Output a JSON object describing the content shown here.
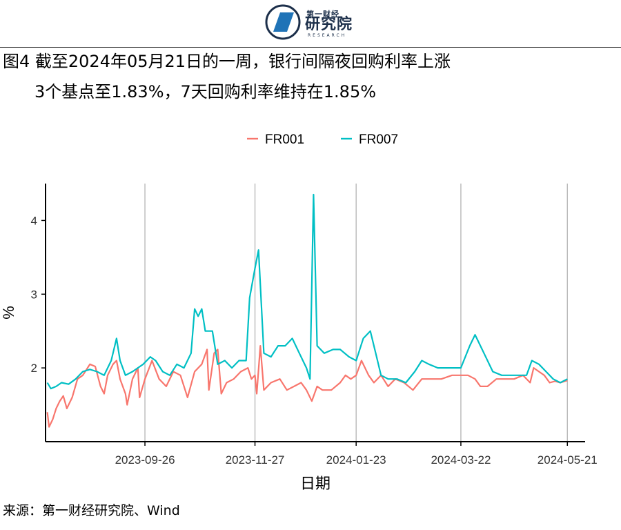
{
  "header": {
    "logo_small": "第一财经",
    "logo_big": "研究院",
    "logo_en": "RESEARCH"
  },
  "title": {
    "line1": "图4 截至2024年05月21日的一周，银行间隔夜回购利率上涨",
    "line2": "3个基点至1.83%，7天回购利率维持在1.85%"
  },
  "footer": {
    "source": "来源：第一财经研究院、Wind"
  },
  "colors": {
    "FR001": "#F8766D",
    "FR007": "#00BFC4"
  },
  "chart_data": {
    "type": "line",
    "xlabel": "日期",
    "ylabel": "%",
    "x_range": [
      "2023-08-01",
      "2024-05-31"
    ],
    "ylim": [
      1.0,
      4.5
    ],
    "x_ticks": [
      "2023-09-26",
      "2023-11-27",
      "2024-01-23",
      "2024-03-22",
      "2024-05-21"
    ],
    "y_ticks": [
      2,
      3,
      4
    ],
    "grid": "vertical-major",
    "legend": "top",
    "series": [
      {
        "name": "FR001",
        "color": "#F8766D",
        "points": [
          [
            "2023-08-02",
            1.4
          ],
          [
            "2023-08-03",
            1.2
          ],
          [
            "2023-08-05",
            1.3
          ],
          [
            "2023-08-07",
            1.45
          ],
          [
            "2023-08-09",
            1.55
          ],
          [
            "2023-08-11",
            1.62
          ],
          [
            "2023-08-13",
            1.45
          ],
          [
            "2023-08-16",
            1.6
          ],
          [
            "2023-08-19",
            1.85
          ],
          [
            "2023-08-22",
            1.9
          ],
          [
            "2023-08-26",
            2.05
          ],
          [
            "2023-08-29",
            2.02
          ],
          [
            "2023-09-01",
            1.75
          ],
          [
            "2023-09-03",
            1.65
          ],
          [
            "2023-09-05",
            1.9
          ],
          [
            "2023-09-08",
            2.05
          ],
          [
            "2023-09-10",
            2.1
          ],
          [
            "2023-09-12",
            1.85
          ],
          [
            "2023-09-15",
            1.65
          ],
          [
            "2023-09-16",
            1.5
          ],
          [
            "2023-09-19",
            1.85
          ],
          [
            "2023-09-22",
            2.0
          ],
          [
            "2023-09-23",
            1.6
          ],
          [
            "2023-09-26",
            1.85
          ],
          [
            "2023-09-30",
            2.1
          ],
          [
            "2023-10-04",
            1.85
          ],
          [
            "2023-10-08",
            1.75
          ],
          [
            "2023-10-12",
            1.95
          ],
          [
            "2023-10-16",
            1.9
          ],
          [
            "2023-10-20",
            1.6
          ],
          [
            "2023-10-24",
            1.95
          ],
          [
            "2023-10-28",
            2.05
          ],
          [
            "2023-10-31",
            2.25
          ],
          [
            "2023-11-01",
            1.7
          ],
          [
            "2023-11-04",
            2.2
          ],
          [
            "2023-11-06",
            2.25
          ],
          [
            "2023-11-08",
            1.65
          ],
          [
            "2023-11-11",
            1.8
          ],
          [
            "2023-11-15",
            1.85
          ],
          [
            "2023-11-19",
            1.95
          ],
          [
            "2023-11-23",
            2.0
          ],
          [
            "2023-11-25",
            1.85
          ],
          [
            "2023-11-27",
            1.9
          ],
          [
            "2023-11-28",
            1.65
          ],
          [
            "2023-11-30",
            2.3
          ],
          [
            "2023-12-02",
            1.7
          ],
          [
            "2023-12-06",
            1.8
          ],
          [
            "2023-12-11",
            1.85
          ],
          [
            "2023-12-15",
            1.7
          ],
          [
            "2023-12-19",
            1.75
          ],
          [
            "2023-12-23",
            1.8
          ],
          [
            "2023-12-26",
            1.7
          ],
          [
            "2023-12-29",
            1.55
          ],
          [
            "2024-01-01",
            1.75
          ],
          [
            "2024-01-04",
            1.7
          ],
          [
            "2024-01-09",
            1.7
          ],
          [
            "2024-01-14",
            1.8
          ],
          [
            "2024-01-17",
            1.9
          ],
          [
            "2024-01-20",
            1.85
          ],
          [
            "2024-01-23",
            1.9
          ],
          [
            "2024-01-26",
            2.1
          ],
          [
            "2024-01-30",
            1.9
          ],
          [
            "2024-02-02",
            1.8
          ],
          [
            "2024-02-06",
            1.9
          ],
          [
            "2024-02-10",
            1.75
          ],
          [
            "2024-02-14",
            1.85
          ],
          [
            "2024-02-19",
            1.8
          ],
          [
            "2024-02-24",
            1.7
          ],
          [
            "2024-02-29",
            1.85
          ],
          [
            "2024-03-05",
            1.85
          ],
          [
            "2024-03-11",
            1.85
          ],
          [
            "2024-03-17",
            1.9
          ],
          [
            "2024-03-22",
            1.9
          ],
          [
            "2024-03-26",
            1.9
          ],
          [
            "2024-03-30",
            1.85
          ],
          [
            "2024-04-02",
            1.75
          ],
          [
            "2024-04-06",
            1.75
          ],
          [
            "2024-04-11",
            1.85
          ],
          [
            "2024-04-16",
            1.85
          ],
          [
            "2024-04-21",
            1.85
          ],
          [
            "2024-04-26",
            1.9
          ],
          [
            "2024-04-30",
            1.8
          ],
          [
            "2024-05-02",
            2.0
          ],
          [
            "2024-05-05",
            1.95
          ],
          [
            "2024-05-08",
            1.9
          ],
          [
            "2024-05-11",
            1.8
          ],
          [
            "2024-05-14",
            1.82
          ],
          [
            "2024-05-17",
            1.8
          ],
          [
            "2024-05-21",
            1.83
          ]
        ]
      },
      {
        "name": "FR007",
        "color": "#00BFC4",
        "points": [
          [
            "2023-08-02",
            1.8
          ],
          [
            "2023-08-04",
            1.72
          ],
          [
            "2023-08-07",
            1.75
          ],
          [
            "2023-08-10",
            1.8
          ],
          [
            "2023-08-14",
            1.78
          ],
          [
            "2023-08-18",
            1.85
          ],
          [
            "2023-08-22",
            1.95
          ],
          [
            "2023-08-26",
            1.98
          ],
          [
            "2023-08-30",
            1.95
          ],
          [
            "2023-09-03",
            1.9
          ],
          [
            "2023-09-07",
            2.1
          ],
          [
            "2023-09-10",
            2.4
          ],
          [
            "2023-09-12",
            2.1
          ],
          [
            "2023-09-15",
            1.9
          ],
          [
            "2023-09-19",
            1.95
          ],
          [
            "2023-09-22",
            2.0
          ],
          [
            "2023-09-25",
            2.05
          ],
          [
            "2023-09-29",
            2.15
          ],
          [
            "2023-10-02",
            2.1
          ],
          [
            "2023-10-06",
            1.95
          ],
          [
            "2023-10-10",
            1.9
          ],
          [
            "2023-10-14",
            2.05
          ],
          [
            "2023-10-18",
            2.0
          ],
          [
            "2023-10-22",
            2.2
          ],
          [
            "2023-10-24",
            2.8
          ],
          [
            "2023-10-26",
            2.7
          ],
          [
            "2023-10-28",
            2.8
          ],
          [
            "2023-10-30",
            2.5
          ],
          [
            "2023-11-03",
            2.5
          ],
          [
            "2023-11-06",
            2.05
          ],
          [
            "2023-11-10",
            2.1
          ],
          [
            "2023-11-14",
            2.0
          ],
          [
            "2023-11-18",
            2.1
          ],
          [
            "2023-11-22",
            2.1
          ],
          [
            "2023-11-24",
            2.95
          ],
          [
            "2023-11-27",
            3.35
          ],
          [
            "2023-11-29",
            3.6
          ],
          [
            "2023-12-02",
            2.2
          ],
          [
            "2023-12-06",
            2.15
          ],
          [
            "2023-12-10",
            2.3
          ],
          [
            "2023-12-14",
            2.3
          ],
          [
            "2023-12-18",
            2.4
          ],
          [
            "2023-12-22",
            2.2
          ],
          [
            "2023-12-26",
            2.0
          ],
          [
            "2023-12-28",
            1.85
          ],
          [
            "2023-12-30",
            4.35
          ],
          [
            "2024-01-01",
            2.3
          ],
          [
            "2024-01-05",
            2.2
          ],
          [
            "2024-01-10",
            2.25
          ],
          [
            "2024-01-14",
            2.25
          ],
          [
            "2024-01-19",
            2.15
          ],
          [
            "2024-01-23",
            2.1
          ],
          [
            "2024-01-27",
            2.4
          ],
          [
            "2024-01-31",
            2.5
          ],
          [
            "2024-02-03",
            2.2
          ],
          [
            "2024-02-06",
            1.9
          ],
          [
            "2024-02-10",
            1.85
          ],
          [
            "2024-02-15",
            1.85
          ],
          [
            "2024-02-20",
            1.8
          ],
          [
            "2024-02-25",
            1.95
          ],
          [
            "2024-02-29",
            2.1
          ],
          [
            "2024-03-04",
            2.05
          ],
          [
            "2024-03-09",
            2.0
          ],
          [
            "2024-03-14",
            2.0
          ],
          [
            "2024-03-19",
            2.0
          ],
          [
            "2024-03-22",
            2.0
          ],
          [
            "2024-03-27",
            2.3
          ],
          [
            "2024-03-30",
            2.45
          ],
          [
            "2024-04-04",
            2.2
          ],
          [
            "2024-04-09",
            1.95
          ],
          [
            "2024-04-14",
            1.9
          ],
          [
            "2024-04-19",
            1.9
          ],
          [
            "2024-04-24",
            1.9
          ],
          [
            "2024-04-28",
            1.9
          ],
          [
            "2024-05-01",
            2.1
          ],
          [
            "2024-05-05",
            2.05
          ],
          [
            "2024-05-09",
            1.95
          ],
          [
            "2024-05-13",
            1.85
          ],
          [
            "2024-05-17",
            1.8
          ],
          [
            "2024-05-21",
            1.85
          ]
        ]
      }
    ]
  }
}
